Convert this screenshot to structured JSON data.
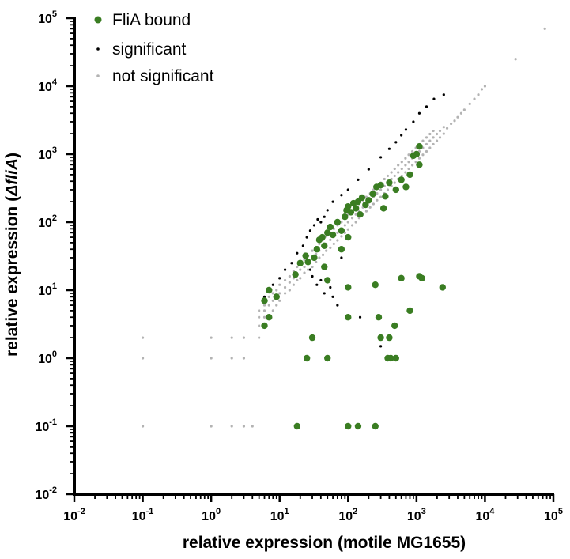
{
  "chart_data": {
    "type": "scatter",
    "xlabel": "relative expression (motile MG1655)",
    "ylabel_prefix": "relative expression (",
    "ylabel_italic": "ΔfliA",
    "ylabel_suffix": ")",
    "x_scale": "log",
    "y_scale": "log",
    "xlim": [
      0.01,
      100000
    ],
    "ylim": [
      0.01,
      100000
    ],
    "x_ticks": [
      {
        "base": "10",
        "exp": "-2",
        "value": 0.01
      },
      {
        "base": "10",
        "exp": "-1",
        "value": 0.1
      },
      {
        "base": "10",
        "exp": "0",
        "value": 1
      },
      {
        "base": "10",
        "exp": "1",
        "value": 10
      },
      {
        "base": "10",
        "exp": "2",
        "value": 100
      },
      {
        "base": "10",
        "exp": "3",
        "value": 1000
      },
      {
        "base": "10",
        "exp": "4",
        "value": 10000
      },
      {
        "base": "10",
        "exp": "5",
        "value": 100000
      }
    ],
    "y_ticks": [
      {
        "base": "10",
        "exp": "-2",
        "value": 0.01
      },
      {
        "base": "10",
        "exp": "-1",
        "value": 0.1
      },
      {
        "base": "10",
        "exp": "0",
        "value": 1
      },
      {
        "base": "10",
        "exp": "1",
        "value": 10
      },
      {
        "base": "10",
        "exp": "2",
        "value": 100
      },
      {
        "base": "10",
        "exp": "3",
        "value": 1000
      },
      {
        "base": "10",
        "exp": "4",
        "value": 10000
      },
      {
        "base": "10",
        "exp": "5",
        "value": 100000
      }
    ],
    "grid": false,
    "legend_position": "top-left",
    "series": [
      {
        "name": "not significant",
        "color": "#b3b3b3",
        "marker": "small-dot",
        "points": [
          [
            0.1,
            0.1
          ],
          [
            0.1,
            1
          ],
          [
            0.1,
            2
          ],
          [
            1,
            0.1
          ],
          [
            1,
            1
          ],
          [
            1,
            2
          ],
          [
            2,
            0.1
          ],
          [
            2,
            1
          ],
          [
            2,
            2
          ],
          [
            3,
            0.1
          ],
          [
            3,
            1
          ],
          [
            3,
            2
          ],
          [
            4,
            0.1
          ],
          [
            5,
            2
          ],
          [
            5,
            3
          ],
          [
            5,
            4
          ],
          [
            5,
            5
          ],
          [
            6,
            3
          ],
          [
            6,
            4
          ],
          [
            6,
            5
          ],
          [
            6,
            6
          ],
          [
            7,
            4
          ],
          [
            7,
            6
          ],
          [
            7,
            8
          ],
          [
            8,
            5
          ],
          [
            8,
            7
          ],
          [
            8,
            9
          ],
          [
            9,
            6
          ],
          [
            9,
            8
          ],
          [
            9,
            10
          ],
          [
            10,
            7
          ],
          [
            10,
            9
          ],
          [
            10,
            12
          ],
          [
            12,
            9
          ],
          [
            12,
            11
          ],
          [
            12,
            14
          ],
          [
            14,
            10
          ],
          [
            14,
            13
          ],
          [
            14,
            16
          ],
          [
            16,
            12
          ],
          [
            16,
            15
          ],
          [
            16,
            19
          ],
          [
            18,
            14
          ],
          [
            18,
            17
          ],
          [
            18,
            22
          ],
          [
            20,
            15
          ],
          [
            20,
            20
          ],
          [
            20,
            25
          ],
          [
            23,
            18
          ],
          [
            23,
            22
          ],
          [
            23,
            28
          ],
          [
            26,
            20
          ],
          [
            26,
            26
          ],
          [
            26,
            32
          ],
          [
            30,
            22
          ],
          [
            30,
            30
          ],
          [
            30,
            38
          ],
          [
            34,
            26
          ],
          [
            34,
            34
          ],
          [
            34,
            43
          ],
          [
            38,
            30
          ],
          [
            38,
            38
          ],
          [
            38,
            48
          ],
          [
            43,
            33
          ],
          [
            43,
            43
          ],
          [
            43,
            55
          ],
          [
            48,
            38
          ],
          [
            48,
            48
          ],
          [
            48,
            62
          ],
          [
            55,
            42
          ],
          [
            55,
            55
          ],
          [
            55,
            70
          ],
          [
            62,
            48
          ],
          [
            62,
            62
          ],
          [
            62,
            80
          ],
          [
            70,
            54
          ],
          [
            70,
            70
          ],
          [
            70,
            90
          ],
          [
            80,
            62
          ],
          [
            80,
            80
          ],
          [
            80,
            100
          ],
          [
            90,
            70
          ],
          [
            90,
            90
          ],
          [
            90,
            115
          ],
          [
            100,
            78
          ],
          [
            100,
            100
          ],
          [
            100,
            130
          ],
          [
            115,
            90
          ],
          [
            115,
            115
          ],
          [
            115,
            145
          ],
          [
            130,
            100
          ],
          [
            130,
            130
          ],
          [
            130,
            165
          ],
          [
            145,
            115
          ],
          [
            145,
            145
          ],
          [
            145,
            185
          ],
          [
            165,
            130
          ],
          [
            165,
            165
          ],
          [
            165,
            210
          ],
          [
            185,
            145
          ],
          [
            185,
            185
          ],
          [
            185,
            235
          ],
          [
            210,
            165
          ],
          [
            210,
            210
          ],
          [
            210,
            265
          ],
          [
            235,
            185
          ],
          [
            235,
            235
          ],
          [
            235,
            300
          ],
          [
            265,
            210
          ],
          [
            265,
            265
          ],
          [
            265,
            340
          ],
          [
            300,
            235
          ],
          [
            300,
            300
          ],
          [
            300,
            380
          ],
          [
            340,
            265
          ],
          [
            340,
            340
          ],
          [
            340,
            430
          ],
          [
            380,
            300
          ],
          [
            380,
            380
          ],
          [
            380,
            480
          ],
          [
            430,
            340
          ],
          [
            430,
            430
          ],
          [
            430,
            540
          ],
          [
            480,
            380
          ],
          [
            480,
            480
          ],
          [
            480,
            610
          ],
          [
            540,
            430
          ],
          [
            540,
            540
          ],
          [
            540,
            690
          ],
          [
            610,
            480
          ],
          [
            610,
            610
          ],
          [
            610,
            770
          ],
          [
            690,
            540
          ],
          [
            690,
            690
          ],
          [
            690,
            870
          ],
          [
            770,
            610
          ],
          [
            770,
            770
          ],
          [
            770,
            980
          ],
          [
            870,
            690
          ],
          [
            870,
            870
          ],
          [
            870,
            1100
          ],
          [
            980,
            770
          ],
          [
            980,
            980
          ],
          [
            980,
            1240
          ],
          [
            1100,
            870
          ],
          [
            1100,
            1100
          ],
          [
            1100,
            1400
          ],
          [
            1240,
            980
          ],
          [
            1240,
            1240
          ],
          [
            1240,
            1570
          ],
          [
            1400,
            1100
          ],
          [
            1400,
            1400
          ],
          [
            1400,
            1760
          ],
          [
            1570,
            1240
          ],
          [
            1570,
            1570
          ],
          [
            1570,
            1980
          ],
          [
            1760,
            1400
          ],
          [
            1760,
            1760
          ],
          [
            1760,
            2200
          ],
          [
            1980,
            1570
          ],
          [
            1980,
            1980
          ],
          [
            2200,
            1760
          ],
          [
            2200,
            2200
          ],
          [
            2500,
            2000
          ],
          [
            2500,
            2500
          ],
          [
            2800,
            2400
          ],
          [
            3200,
            2800
          ],
          [
            3600,
            3100
          ],
          [
            4000,
            3500
          ],
          [
            4500,
            4000
          ],
          [
            5000,
            4500
          ],
          [
            6000,
            5500
          ],
          [
            7000,
            6500
          ],
          [
            8000,
            7500
          ],
          [
            9000,
            9000
          ],
          [
            10000,
            10000
          ],
          [
            28000,
            25000
          ],
          [
            75000,
            70000
          ]
        ]
      },
      {
        "name": "significant",
        "color": "#000000",
        "marker": "small-dot",
        "points": [
          [
            6,
            8
          ],
          [
            8,
            12
          ],
          [
            10,
            15
          ],
          [
            12,
            20
          ],
          [
            15,
            25
          ],
          [
            18,
            35
          ],
          [
            22,
            45
          ],
          [
            25,
            60
          ],
          [
            28,
            75
          ],
          [
            32,
            90
          ],
          [
            36,
            110
          ],
          [
            40,
            100
          ],
          [
            45,
            120
          ],
          [
            50,
            150
          ],
          [
            60,
            200
          ],
          [
            80,
            250
          ],
          [
            100,
            300
          ],
          [
            140,
            420
          ],
          [
            200,
            600
          ],
          [
            300,
            900
          ],
          [
            400,
            1200
          ],
          [
            500,
            1500
          ],
          [
            600,
            1900
          ],
          [
            700,
            2300
          ],
          [
            900,
            3000
          ],
          [
            1100,
            4000
          ],
          [
            1400,
            5000
          ],
          [
            1800,
            6500
          ],
          [
            2500,
            7500
          ],
          [
            30,
            16
          ],
          [
            35,
            12
          ],
          [
            45,
            9
          ],
          [
            60,
            8
          ],
          [
            70,
            6
          ],
          [
            40,
            14
          ],
          [
            55,
            11
          ],
          [
            28,
            20
          ],
          [
            80,
            30
          ],
          [
            150,
            4
          ],
          [
            300,
            1.5
          ]
        ]
      },
      {
        "name": "FliA bound",
        "color": "#3a7d22",
        "marker": "large-dot",
        "points": [
          [
            6,
            3
          ],
          [
            6,
            7
          ],
          [
            7,
            4
          ],
          [
            7,
            10
          ],
          [
            9,
            8
          ],
          [
            17,
            17
          ],
          [
            20,
            25
          ],
          [
            24,
            32
          ],
          [
            26,
            26
          ],
          [
            32,
            30
          ],
          [
            35,
            40
          ],
          [
            38,
            55
          ],
          [
            42,
            60
          ],
          [
            45,
            45
          ],
          [
            50,
            70
          ],
          [
            55,
            85
          ],
          [
            60,
            65
          ],
          [
            70,
            100
          ],
          [
            80,
            75
          ],
          [
            90,
            120
          ],
          [
            95,
            150
          ],
          [
            100,
            170
          ],
          [
            110,
            140
          ],
          [
            120,
            190
          ],
          [
            130,
            160
          ],
          [
            140,
            200
          ],
          [
            150,
            130
          ],
          [
            160,
            230
          ],
          [
            180,
            180
          ],
          [
            200,
            210
          ],
          [
            230,
            260
          ],
          [
            260,
            330
          ],
          [
            300,
            350
          ],
          [
            330,
            160
          ],
          [
            350,
            240
          ],
          [
            400,
            380
          ],
          [
            500,
            300
          ],
          [
            600,
            420
          ],
          [
            700,
            330
          ],
          [
            800,
            500
          ],
          [
            900,
            950
          ],
          [
            1000,
            1000
          ],
          [
            1100,
            700
          ],
          [
            1100,
            1300
          ],
          [
            50,
            14
          ],
          [
            45,
            22
          ],
          [
            80,
            40
          ],
          [
            100,
            60
          ],
          [
            25,
            1
          ],
          [
            30,
            2
          ],
          [
            50,
            1
          ],
          [
            100,
            11
          ],
          [
            100,
            4
          ],
          [
            250,
            12
          ],
          [
            280,
            4
          ],
          [
            300,
            2
          ],
          [
            380,
            1
          ],
          [
            400,
            2
          ],
          [
            480,
            3
          ],
          [
            420,
            1
          ],
          [
            500,
            1
          ],
          [
            600,
            15
          ],
          [
            800,
            5
          ],
          [
            1100,
            16
          ],
          [
            1200,
            15
          ],
          [
            2400,
            11
          ],
          [
            18,
            0.1
          ],
          [
            100,
            0.1
          ],
          [
            140,
            0.1
          ],
          [
            250,
            0.1
          ]
        ]
      }
    ]
  }
}
